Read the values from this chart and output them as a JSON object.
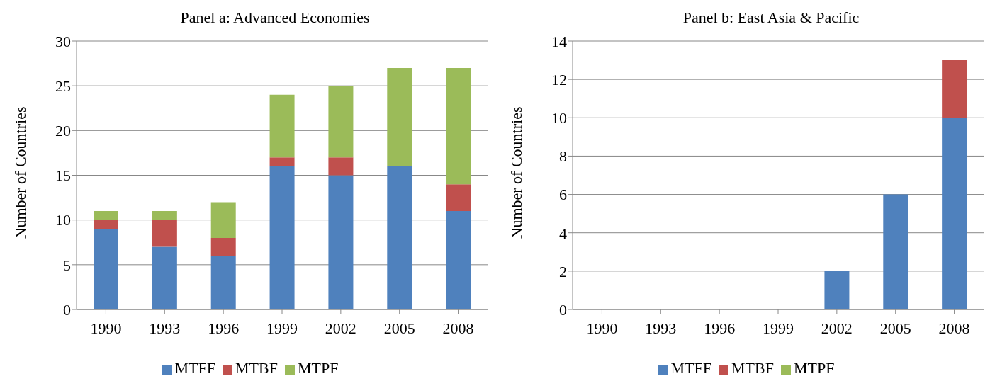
{
  "chart_data": [
    {
      "type": "bar",
      "title": "Panel a: Advanced Economies",
      "ylabel": "Number of Countries",
      "categories": [
        "1990",
        "1993",
        "1996",
        "1999",
        "2002",
        "2005",
        "2008"
      ],
      "stacked": true,
      "ylim": [
        0,
        30
      ],
      "yticks": [
        0,
        5,
        10,
        15,
        20,
        25,
        30
      ],
      "grid": "y",
      "legend": "bottom",
      "series": [
        {
          "name": "MTFF",
          "color": "#4f81bd",
          "values": [
            9,
            7,
            6,
            16,
            15,
            16,
            11
          ]
        },
        {
          "name": "MTBF",
          "color": "#c0504d",
          "values": [
            1,
            3,
            2,
            1,
            2,
            0,
            3
          ]
        },
        {
          "name": "MTPF",
          "color": "#9bbb59",
          "values": [
            1,
            1,
            4,
            7,
            8,
            11,
            13
          ]
        }
      ]
    },
    {
      "type": "bar",
      "title": "Panel b: East Asia & Pacific",
      "ylabel": "Number of Countries",
      "categories": [
        "1990",
        "1993",
        "1996",
        "1999",
        "2002",
        "2005",
        "2008"
      ],
      "stacked": true,
      "ylim": [
        0,
        14
      ],
      "yticks": [
        0,
        2,
        4,
        6,
        8,
        10,
        12,
        14
      ],
      "grid": "y",
      "legend": "bottom",
      "series": [
        {
          "name": "MTFF",
          "color": "#4f81bd",
          "values": [
            0,
            0,
            0,
            0,
            2,
            6,
            10
          ]
        },
        {
          "name": "MTBF",
          "color": "#c0504d",
          "values": [
            0,
            0,
            0,
            0,
            0,
            0,
            3
          ]
        },
        {
          "name": "MTPF",
          "color": "#9bbb59",
          "values": [
            0,
            0,
            0,
            0,
            0,
            0,
            0
          ]
        }
      ]
    }
  ]
}
